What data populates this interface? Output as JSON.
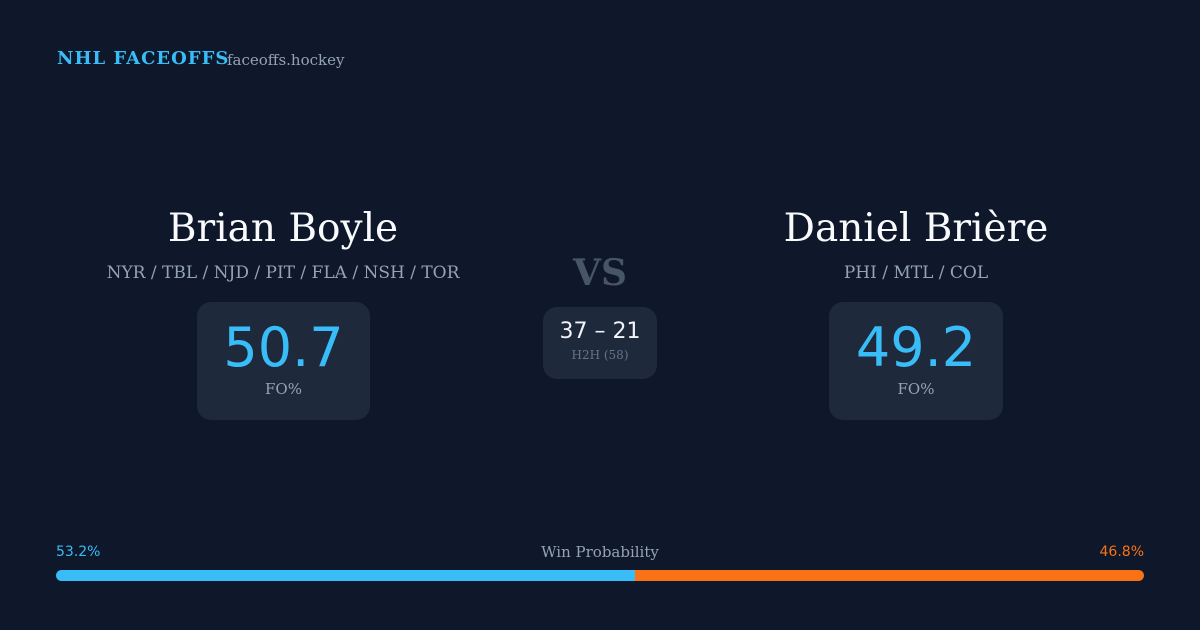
{
  "header": {
    "brand": "NHL FACEOFFS",
    "site": "faceoffs.hockey"
  },
  "players": [
    {
      "name": "Brian Boyle",
      "teams": "NYR / TBL / NJD / PIT / FLA / NSH / TOR",
      "fo_value": "50.7",
      "fo_label": "FO%"
    },
    {
      "name": "Daniel Brière",
      "teams": "PHI / MTL / COL",
      "fo_value": "49.2",
      "fo_label": "FO%"
    }
  ],
  "versus": "VS",
  "head_to_head": {
    "record": "37 – 21",
    "label": "H2H (58)"
  },
  "win_probability": {
    "label": "Win Probability",
    "left": {
      "value": 53.2,
      "label": "53.2%",
      "color": "#38bdf8"
    },
    "right": {
      "value": 46.8,
      "label": "46.8%",
      "color": "#f97316"
    }
  }
}
